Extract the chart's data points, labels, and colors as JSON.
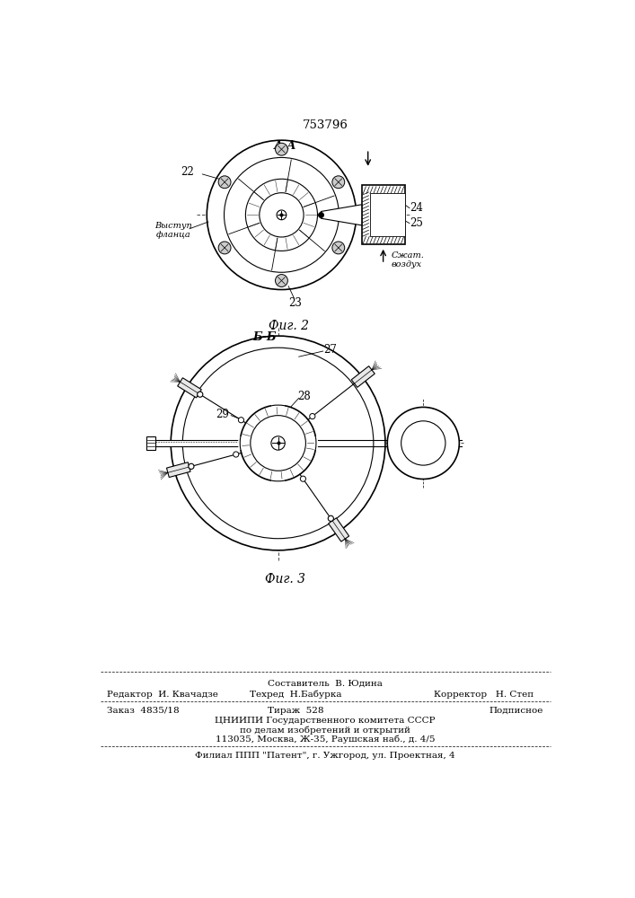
{
  "bg_color": "#ffffff",
  "patent_number": "753796",
  "fig2_label": "А-А",
  "fig2_caption": "Фиг. 2",
  "fig3_label": "Б-Б",
  "fig3_caption": "Фиг. 3",
  "label_22": "22",
  "label_23": "23",
  "label_24": "24",
  "label_25": "25",
  "label_vystu": "Выступ\nфланца",
  "label_szhat": "Сжат.\nвоздух",
  "label_27": "27",
  "label_28": "28",
  "label_29": "29",
  "footer_line1": "Составитель  В. Юдина",
  "footer_line2_left": "Редактор  И. Квачадзе",
  "footer_line2_center": "Техред  Н.Бабурка",
  "footer_line2_right": "Корректор   Н. Степ",
  "footer_line3_left": "Заказ  4835/18",
  "footer_line3_center": "Тираж  528",
  "footer_line3_right": "Подписное",
  "footer_line4": "ЦНИИПИ Государственного комитета СССР",
  "footer_line5": "по делам изобретений и открытий",
  "footer_line6": "113035, Москва, Ж-35, Раушская наб., д. 4/5",
  "footer_line7": "Филиал ППП \"Патент\", г. Ужгород, ул. Проектная, 4"
}
